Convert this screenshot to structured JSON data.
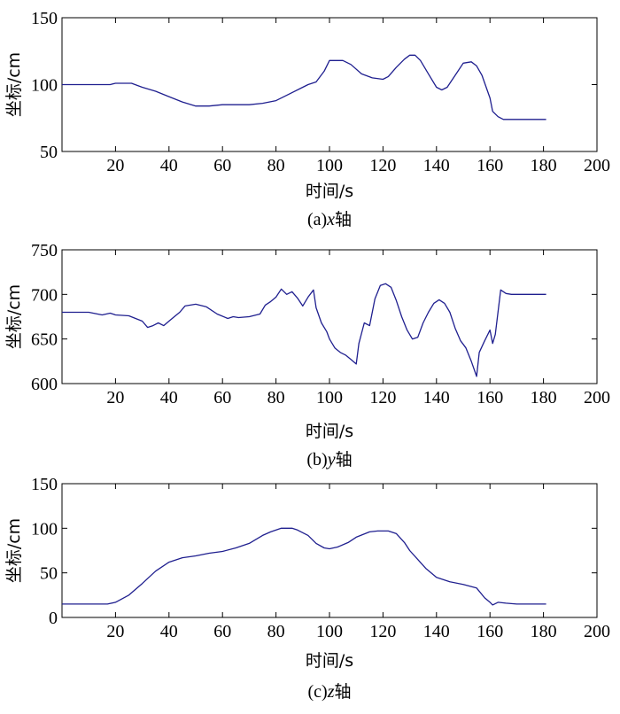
{
  "chart_data": [
    {
      "type": "line",
      "caption_prefix": "(a)",
      "caption_var": "x",
      "caption_suffix": "轴",
      "xlabel": "时间/s",
      "ylabel": "坐标/cm",
      "xlim": [
        0,
        200
      ],
      "ylim": [
        50,
        150
      ],
      "xticks": [
        20,
        40,
        60,
        80,
        100,
        120,
        140,
        160,
        180,
        200
      ],
      "yticks": [
        50,
        100,
        150
      ],
      "series": [
        {
          "name": "x",
          "color": "#1f1f8f",
          "x": [
            0,
            18,
            20,
            26,
            30,
            35,
            40,
            45,
            50,
            55,
            60,
            70,
            75,
            80,
            85,
            90,
            92,
            95,
            98,
            100,
            105,
            108,
            112,
            116,
            120,
            122,
            125,
            128,
            130,
            132,
            134,
            137,
            140,
            142,
            144,
            146,
            148,
            150,
            153,
            155,
            157,
            160,
            161,
            163,
            165,
            168,
            181
          ],
          "y": [
            100,
            100,
            101,
            101,
            98,
            95,
            91,
            87,
            84,
            84,
            85,
            85,
            86,
            88,
            93,
            98,
            100,
            102,
            110,
            118,
            118,
            115,
            108,
            105,
            104,
            106,
            113,
            119,
            122,
            122,
            118,
            108,
            98,
            96,
            98,
            104,
            110,
            116,
            117,
            114,
            107,
            90,
            80,
            76,
            74,
            74,
            74
          ]
        }
      ]
    },
    {
      "type": "line",
      "caption_prefix": "(b)",
      "caption_var": "y",
      "caption_suffix": "轴",
      "xlabel": "时间/s",
      "ylabel": "坐标/cm",
      "xlim": [
        0,
        200
      ],
      "ylim": [
        600,
        750
      ],
      "xticks": [
        20,
        40,
        60,
        80,
        100,
        120,
        140,
        160,
        180,
        200
      ],
      "yticks": [
        600,
        650,
        700,
        750
      ],
      "series": [
        {
          "name": "y",
          "color": "#1f1f8f",
          "x": [
            0,
            10,
            15,
            18,
            20,
            25,
            30,
            32,
            34,
            36,
            38,
            40,
            42,
            44,
            46,
            50,
            54,
            58,
            62,
            64,
            66,
            70,
            74,
            76,
            78,
            80,
            82,
            84,
            86,
            88,
            90,
            92,
            94,
            95,
            97,
            99,
            100,
            102,
            104,
            106,
            108,
            110,
            111,
            113,
            115,
            117,
            119,
            121,
            123,
            125,
            127,
            129,
            131,
            133,
            135,
            137,
            139,
            141,
            143,
            145,
            147,
            149,
            151,
            153,
            155,
            156,
            158,
            160,
            161,
            162,
            164,
            166,
            168,
            181
          ],
          "y": [
            680,
            680,
            677,
            679,
            677,
            676,
            670,
            663,
            665,
            668,
            665,
            670,
            675,
            680,
            687,
            689,
            686,
            678,
            673,
            675,
            674,
            675,
            678,
            688,
            692,
            697,
            706,
            700,
            703,
            696,
            687,
            697,
            705,
            685,
            668,
            658,
            650,
            640,
            635,
            632,
            627,
            622,
            645,
            668,
            665,
            695,
            710,
            712,
            708,
            693,
            675,
            660,
            650,
            652,
            668,
            680,
            690,
            694,
            690,
            680,
            662,
            648,
            640,
            625,
            608,
            635,
            648,
            660,
            645,
            655,
            705,
            701,
            700,
            700
          ]
        }
      ]
    },
    {
      "type": "line",
      "caption_prefix": "(c)",
      "caption_var": "z",
      "caption_suffix": "轴",
      "xlabel": "时间/s",
      "ylabel": "坐标/cm",
      "xlim": [
        0,
        200
      ],
      "ylim": [
        0,
        150
      ],
      "xticks": [
        20,
        40,
        60,
        80,
        100,
        120,
        140,
        160,
        180,
        200
      ],
      "yticks": [
        0,
        50,
        100,
        150
      ],
      "series": [
        {
          "name": "z",
          "color": "#1f1f8f",
          "x": [
            0,
            17,
            20,
            25,
            30,
            35,
            40,
            45,
            50,
            55,
            60,
            65,
            70,
            75,
            78,
            82,
            86,
            88,
            92,
            95,
            98,
            100,
            103,
            107,
            110,
            115,
            118,
            122,
            125,
            128,
            130,
            133,
            136,
            140,
            145,
            150,
            155,
            158,
            160,
            161,
            163,
            166,
            170,
            181
          ],
          "y": [
            15,
            15,
            17,
            25,
            38,
            52,
            62,
            67,
            69,
            72,
            74,
            78,
            83,
            92,
            96,
            100,
            100,
            98,
            92,
            83,
            78,
            77,
            79,
            84,
            90,
            96,
            97,
            97,
            94,
            84,
            75,
            65,
            55,
            45,
            40,
            37,
            33,
            22,
            17,
            14,
            17,
            16,
            15,
            15
          ]
        }
      ]
    }
  ]
}
